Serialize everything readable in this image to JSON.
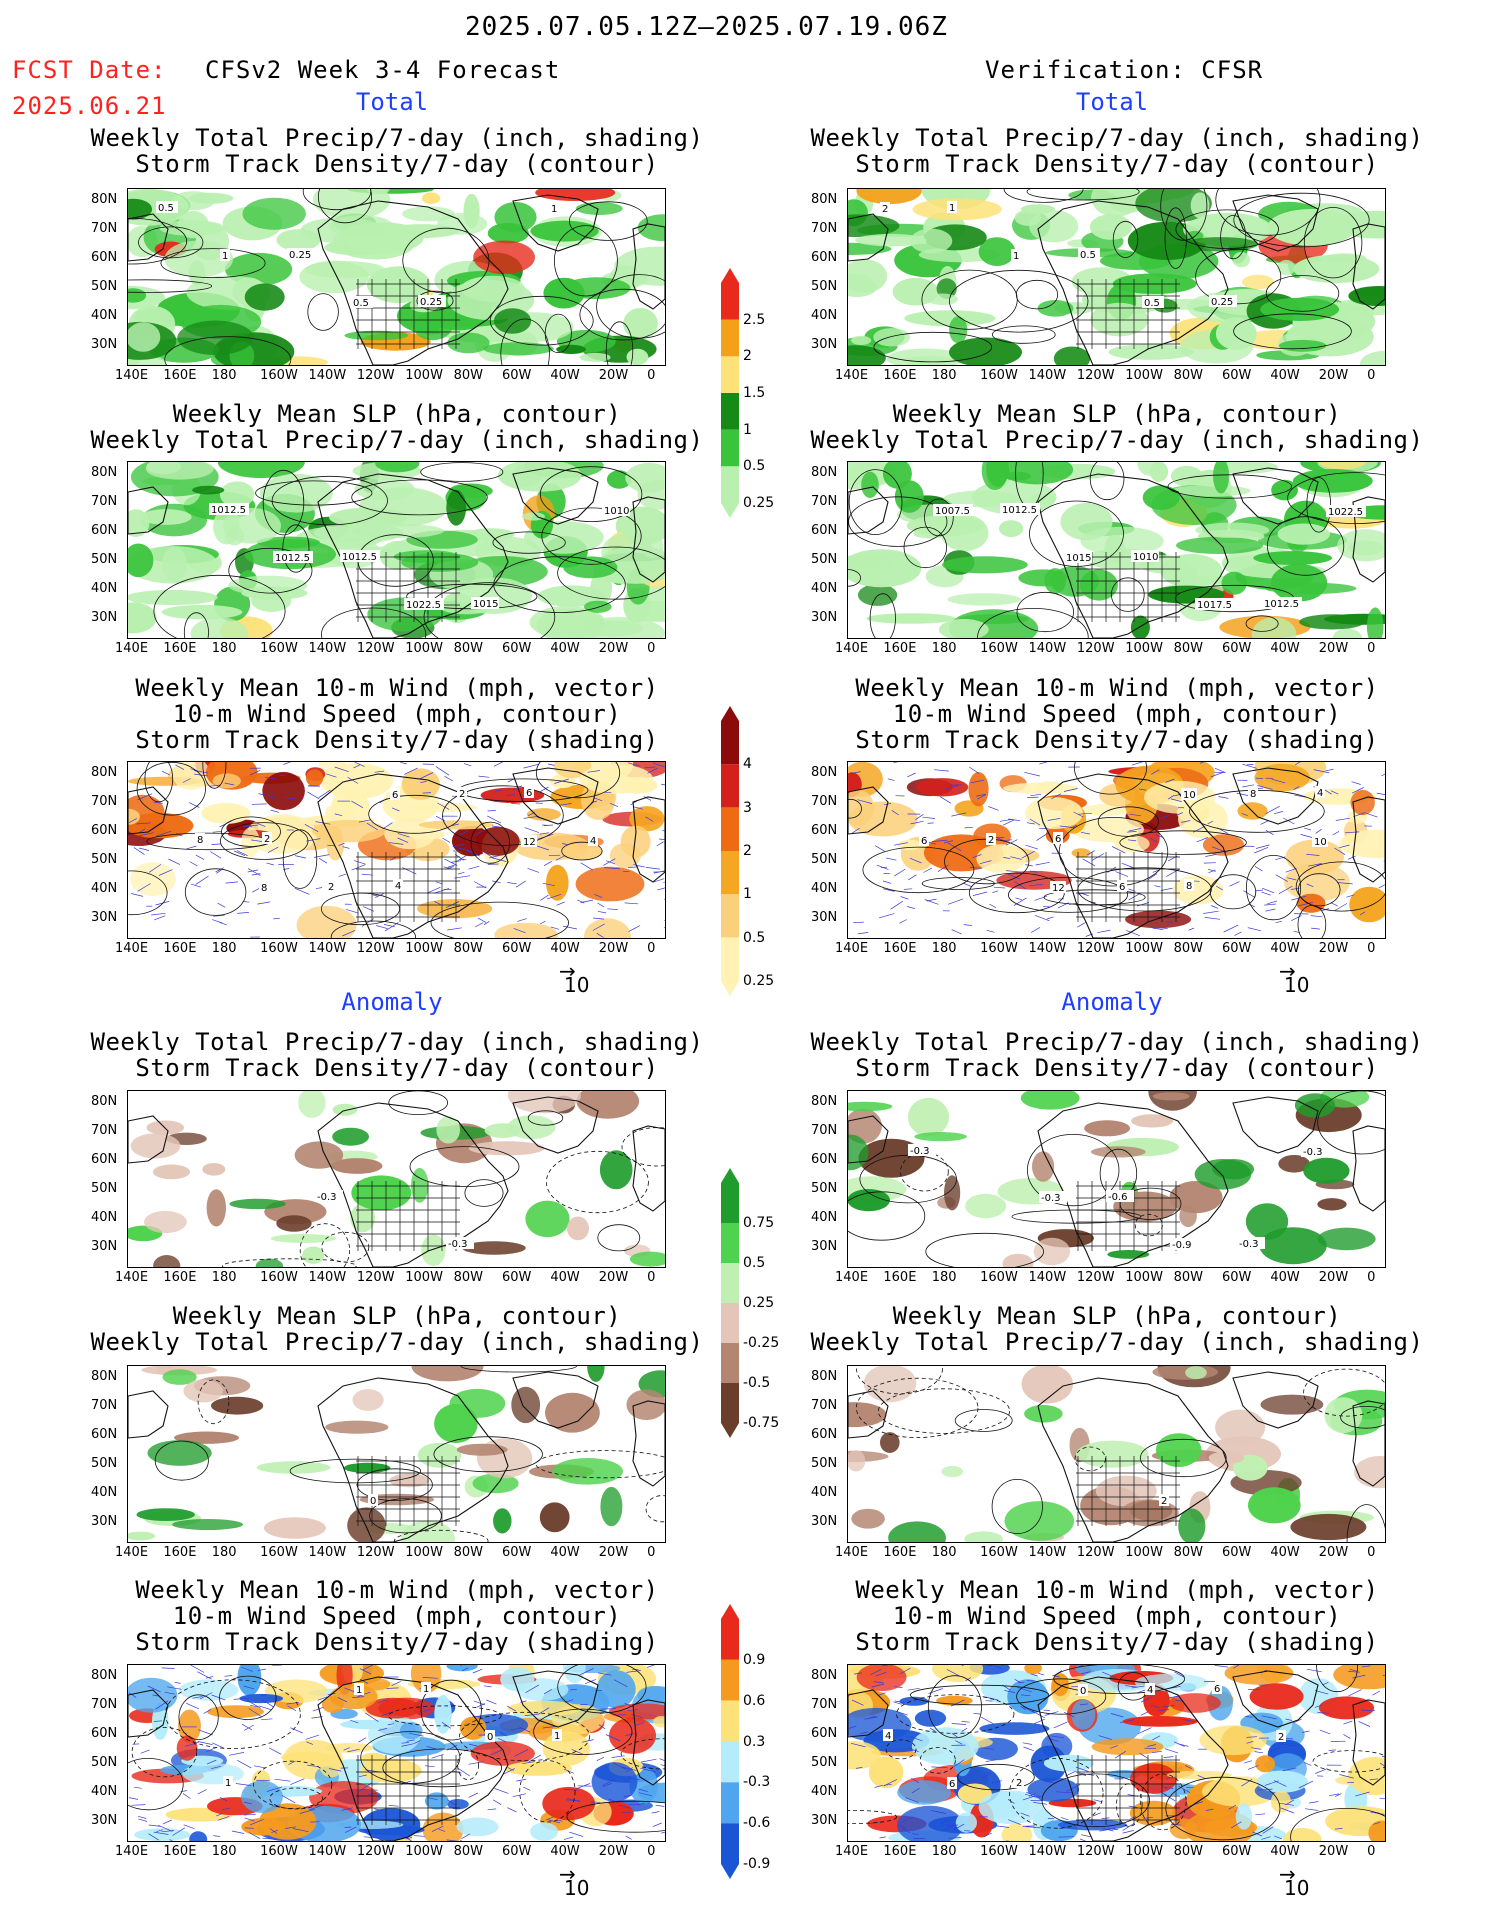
{
  "header": {
    "date_range": "2025.07.05.12Z–2025.07.19.06Z",
    "fcst_label": "FCST Date:",
    "fcst_date": "2025.06.21",
    "left_title": "CFSv2 Week 3-4 Forecast",
    "right_title": "Verification: CFSR"
  },
  "sections": {
    "total": "Total",
    "anomaly": "Anomaly"
  },
  "titles": {
    "precip_storm": [
      "Weekly Total Precip/7-day (inch, shading)",
      "Storm Track Density/7-day (contour)"
    ],
    "slp_precip": [
      "Weekly Mean SLP (hPa, contour)",
      "Weekly Total Precip/7-day (inch, shading)"
    ],
    "wind_storm": [
      "Weekly Mean 10-m Wind (mph, vector)",
      "10-m Wind Speed (mph, contour)",
      "Storm Track Density/7-day (shading)"
    ]
  },
  "axes": {
    "lat_labels": [
      "80N",
      "70N",
      "60N",
      "50N",
      "40N",
      "30N"
    ],
    "lon_labels": [
      "140E",
      "160E",
      "180",
      "160W",
      "140W",
      "120W",
      "100W",
      "80W",
      "60W",
      "40W",
      "20W",
      "0"
    ]
  },
  "vector_reference": "10",
  "colorbars": {
    "precip_total": {
      "labels": [
        "2.5",
        "2",
        "1.5",
        "1",
        "0.5",
        "0.25"
      ],
      "colors": [
        "#e8291b",
        "#f4a019",
        "#fde27a",
        "#168a16",
        "#39c43b",
        "#b9f0b0"
      ]
    },
    "storm_total": {
      "labels": [
        "4",
        "3",
        "2",
        "1",
        "0.5",
        "0.25"
      ],
      "colors": [
        "#8b0b0b",
        "#d4201b",
        "#ee6b14",
        "#f5a623",
        "#fbd07a",
        "#fff2b3"
      ]
    },
    "precip_anom": {
      "labels": [
        "0.75",
        "0.5",
        "0.25",
        "-0.25",
        "-0.5",
        "-0.75"
      ],
      "colors": [
        "#1f9c2c",
        "#4fd24d",
        "#bff0b2",
        "#e3c6b8",
        "#b48672",
        "#6b3e2c"
      ]
    },
    "storm_anom": {
      "labels": [
        "0.9",
        "0.6",
        "0.3",
        "-0.3",
        "-0.6",
        "-0.9"
      ],
      "colors": [
        "#e8291b",
        "#f59a1e",
        "#fde27a",
        "#b4ecfb",
        "#4fa6ee",
        "#1a55d6"
      ]
    }
  },
  "contour_labels": {
    "tl1": [
      "0.5",
      "0.25",
      "0.25",
      "1",
      "1",
      "0.5"
    ],
    "tr1": [
      "1",
      "0.5",
      "0.25",
      "2",
      "1",
      "0.5"
    ],
    "tl2": [
      "1012.5",
      "1012.5",
      "1015",
      "1010",
      "1012.5",
      "1022.5"
    ],
    "tr2": [
      "1012.5",
      "1010",
      "1012.5",
      "1007.5",
      "1015",
      "1017.5",
      "1022.5"
    ],
    "tl3": [
      "2",
      "4",
      "6",
      "8",
      "2",
      "2",
      "4",
      "8",
      "6",
      "12"
    ],
    "tr3": [
      "6",
      "8",
      "4",
      "2",
      "6",
      "8",
      "6",
      "12",
      "10",
      "10"
    ],
    "al1": [
      "-0.3",
      "-0.3"
    ],
    "ar1": [
      "-0.6",
      "-0.3",
      "-0.3",
      "-0.3",
      "-0.9",
      "-0.3"
    ],
    "al2": [
      "0"
    ],
    "ar2": [
      "2"
    ],
    "al3": [
      "1",
      "1",
      "1",
      "1",
      "0"
    ],
    "ar3": [
      "6",
      "4",
      "2",
      "4",
      "2",
      "6",
      "0"
    ]
  }
}
